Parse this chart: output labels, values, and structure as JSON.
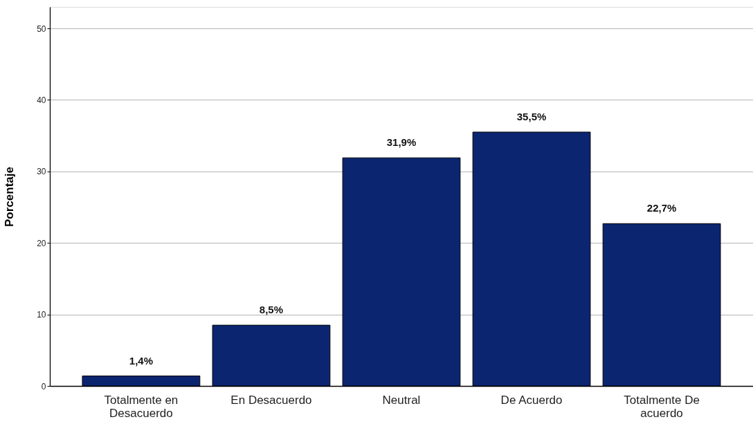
{
  "chart_data": {
    "type": "bar",
    "ylabel": "Porcentaje",
    "categories": [
      "Totalmente en Desacuerdo",
      "En Desacuerdo",
      "Neutral",
      "De Acuerdo",
      "Totalmente De acuerdo"
    ],
    "values": [
      1.4,
      8.5,
      31.9,
      35.5,
      22.7
    ],
    "color": "#0b2570",
    "value_labels": [
      "1,4%",
      "8,5%",
      "31,9%",
      "35,5%",
      "22,7%"
    ],
    "ylim": [
      0,
      53
    ],
    "yticks": [
      0,
      10,
      20,
      30,
      40,
      50
    ],
    "grid": "y"
  }
}
